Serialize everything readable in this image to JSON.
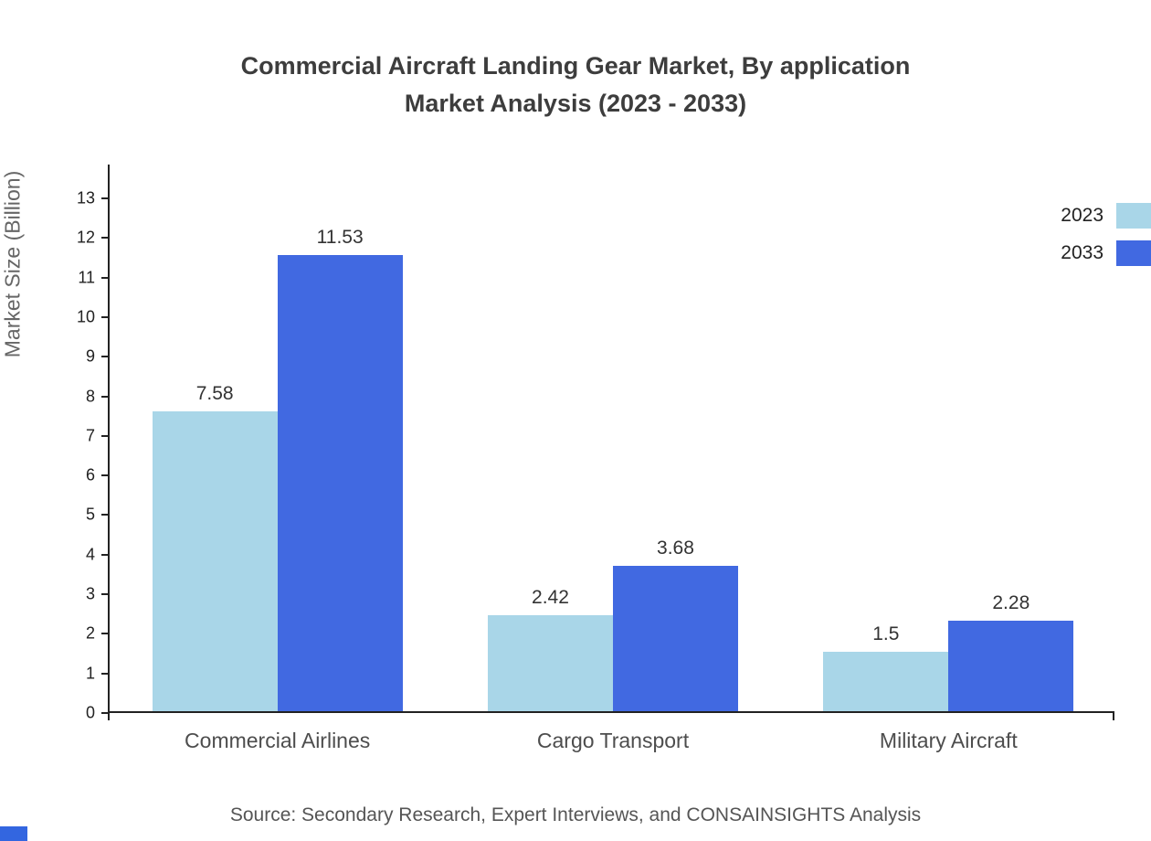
{
  "title": {
    "line1": "Commercial Aircraft Landing Gear Market, By application",
    "line2": "Market Analysis (2023 - 2033)"
  },
  "source": "Source: Secondary Research, Expert Interviews, and CONSAINSIGHTS Analysis",
  "colors": {
    "series_2023": "#a9d6e8",
    "series_2033": "#4169e1",
    "axis": "#222222",
    "brand_mark": "#3366e0"
  },
  "chart_data": {
    "type": "bar",
    "title": "Commercial Aircraft Landing Gear Market, By application Market Analysis (2023 - 2033)",
    "categories": [
      "Commercial Airlines",
      "Cargo Transport",
      "Military Aircraft"
    ],
    "series": [
      {
        "name": "2023",
        "color": "#a9d6e8",
        "values": [
          7.58,
          2.42,
          1.5
        ]
      },
      {
        "name": "2033",
        "color": "#4169e1",
        "values": [
          11.53,
          3.68,
          2.28
        ]
      }
    ],
    "xlabel": "",
    "ylabel": "Market Size (Billion)",
    "ylim": [
      0,
      13
    ],
    "yticks": [
      0,
      1,
      2,
      3,
      4,
      5,
      6,
      7,
      8,
      9,
      10,
      11,
      12,
      13
    ],
    "grid": false,
    "legend_position": "top-right",
    "data_labels": true
  }
}
